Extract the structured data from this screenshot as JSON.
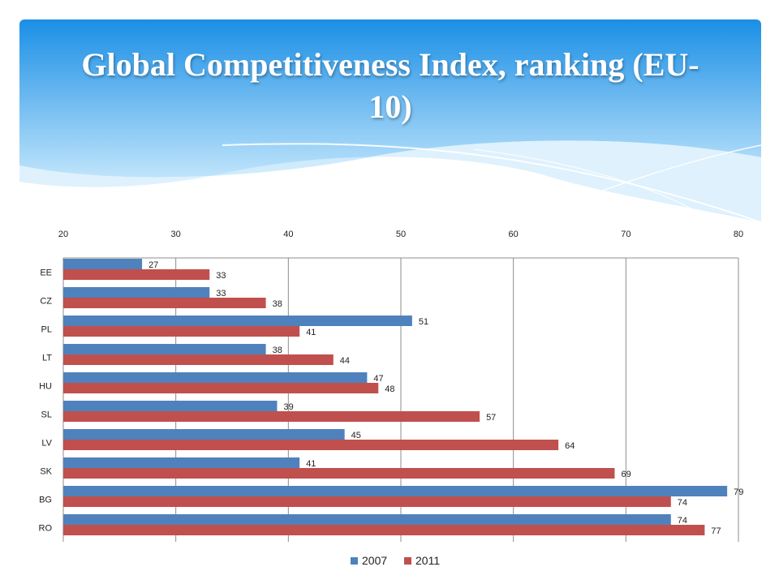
{
  "title": "Global Competitiveness Index, ranking (EU-10)",
  "colors": {
    "header_top": "#1a8fe6",
    "header_bottom": "#bfe4fb",
    "series_2007": "#4f81bd",
    "series_2011": "#c0504d",
    "gridline": "#8c8c8c"
  },
  "chart_data": {
    "type": "bar",
    "orientation": "horizontal",
    "categories": [
      "EE",
      "CZ",
      "PL",
      "LT",
      "HU",
      "SL",
      "LV",
      "SK",
      "BG",
      "RO"
    ],
    "series": [
      {
        "name": "2007",
        "values": [
          27,
          33,
          51,
          38,
          47,
          39,
          45,
          41,
          79,
          74
        ]
      },
      {
        "name": "2011",
        "values": [
          33,
          38,
          41,
          44,
          48,
          57,
          64,
          69,
          74,
          77
        ]
      }
    ],
    "xlim": [
      20,
      80
    ],
    "x_ticks": [
      20,
      30,
      40,
      50,
      60,
      70,
      80
    ],
    "x_axis_position": "top",
    "grid": true,
    "legend_position": "bottom"
  }
}
